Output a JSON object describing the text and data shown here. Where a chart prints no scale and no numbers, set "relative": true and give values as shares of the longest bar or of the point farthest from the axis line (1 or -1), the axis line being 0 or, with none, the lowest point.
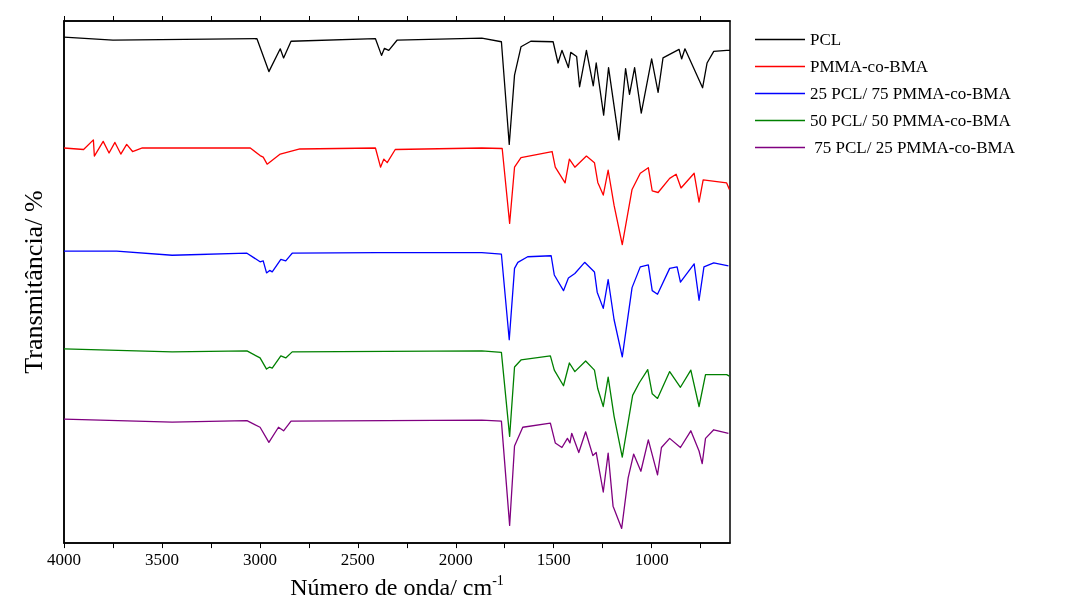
{
  "chart_data": {
    "type": "line",
    "xlabel": "Número de onda/ cm$^{-1}$",
    "ylabel": "Transmitância/ %",
    "relative": true,
    "xlim": [
      4000,
      600
    ],
    "xticks": [
      4000,
      {
        "value": 3750,
        "label": null
      },
      3500,
      {
        "value": 3250,
        "label": null
      },
      3000,
      {
        "value": 2750,
        "label": null
      },
      2500,
      {
        "value": 2250,
        "label": null
      },
      2000,
      {
        "value": 1750,
        "label": null
      },
      1500,
      {
        "value": 1250,
        "label": null
      },
      1000,
      {
        "value": 750,
        "label": null
      }
    ],
    "legend": "top right",
    "series": [
      {
        "name": "PCL",
        "color": "#000000",
        "x": [
          4000,
          3750,
          3015,
          2954,
          2896,
          2879,
          2841,
          2410,
          2379,
          2364,
          2342,
          2300,
          1867,
          1767,
          1727,
          1700,
          1667,
          1617,
          1503,
          1478,
          1458,
          1425,
          1413,
          1383,
          1368,
          1333,
          1298,
          1283,
          1245,
          1220,
          1167,
          1133,
          1113,
          1087,
          1053,
          1000,
          967,
          942,
          860,
          847,
          830,
          740,
          717,
          683,
          617,
          600
        ],
        "values": [
          1.0,
          0.994,
          0.997,
          0.932,
          0.977,
          0.959,
          0.992,
          0.997,
          0.964,
          0.978,
          0.974,
          0.994,
          0.998,
          0.991,
          0.788,
          0.925,
          0.981,
          0.992,
          0.991,
          0.949,
          0.974,
          0.94,
          0.97,
          0.962,
          0.902,
          0.974,
          0.904,
          0.949,
          0.846,
          0.94,
          0.797,
          0.938,
          0.887,
          0.94,
          0.85,
          0.957,
          0.891,
          0.959,
          0.976,
          0.957,
          0.977,
          0.9,
          0.949,
          0.972,
          0.974,
          0.974
        ]
      },
      {
        "name": "PMMA-co-BMA",
        "color": "#ff0000",
        "x": [
          4000,
          3900,
          3850,
          3845,
          3800,
          3770,
          3740,
          3710,
          3680,
          3650,
          3600,
          3049,
          2999,
          2983,
          2963,
          2896,
          2796,
          2410,
          2384,
          2367,
          2350,
          2309,
          1867,
          1763,
          1725,
          1700,
          1667,
          1508,
          1492,
          1442,
          1420,
          1392,
          1333,
          1292,
          1275,
          1247,
          1222,
          1192,
          1150,
          1100,
          1058,
          1017,
          997,
          967,
          908,
          875,
          850,
          783,
          758,
          737,
          617,
          603
        ],
        "values": [
          0.781,
          0.778,
          0.797,
          0.765,
          0.794,
          0.771,
          0.792,
          0.769,
          0.788,
          0.774,
          0.781,
          0.781,
          0.766,
          0.763,
          0.749,
          0.769,
          0.779,
          0.781,
          0.743,
          0.759,
          0.752,
          0.778,
          0.781,
          0.78,
          0.632,
          0.743,
          0.762,
          0.774,
          0.743,
          0.712,
          0.759,
          0.743,
          0.765,
          0.752,
          0.713,
          0.688,
          0.737,
          0.668,
          0.59,
          0.699,
          0.731,
          0.742,
          0.696,
          0.693,
          0.721,
          0.729,
          0.702,
          0.731,
          0.674,
          0.718,
          0.712,
          0.699
        ]
      },
      {
        "name": "25 PCL/ 75 PMMA-co-BMA",
        "color": "#0000ff",
        "x": [
          4000,
          3731,
          3448,
          3066,
          2999,
          2983,
          2966,
          2950,
          2937,
          2893,
          2868,
          2835,
          2400,
          1867,
          1767,
          1727,
          1700,
          1683,
          1633,
          1513,
          1497,
          1450,
          1425,
          1392,
          1342,
          1292,
          1278,
          1247,
          1222,
          1192,
          1150,
          1100,
          1058,
          1017,
          997,
          970,
          908,
          870,
          853,
          783,
          758,
          733,
          683,
          608
        ],
        "values": [
          0.577,
          0.577,
          0.569,
          0.573,
          0.556,
          0.558,
          0.534,
          0.539,
          0.536,
          0.561,
          0.558,
          0.573,
          0.574,
          0.574,
          0.571,
          0.402,
          0.543,
          0.555,
          0.566,
          0.568,
          0.53,
          0.499,
          0.524,
          0.533,
          0.555,
          0.536,
          0.496,
          0.464,
          0.521,
          0.442,
          0.368,
          0.505,
          0.546,
          0.55,
          0.499,
          0.492,
          0.543,
          0.546,
          0.516,
          0.552,
          0.48,
          0.546,
          0.554,
          0.548
        ]
      },
      {
        "name": "50 PCL/ 50 PMMA-co-BMA",
        "color": "#008000",
        "x": [
          4000,
          3448,
          3066,
          2999,
          2966,
          2950,
          2937,
          2893,
          2868,
          2835,
          1867,
          1767,
          1725,
          1700,
          1667,
          1517,
          1497,
          1450,
          1420,
          1392,
          1337,
          1292,
          1275,
          1247,
          1222,
          1192,
          1150,
          1097,
          1063,
          1020,
          997,
          970,
          908,
          853,
          800,
          758,
          725,
          617,
          603
        ],
        "values": [
          0.384,
          0.378,
          0.38,
          0.366,
          0.344,
          0.348,
          0.346,
          0.37,
          0.366,
          0.378,
          0.38,
          0.377,
          0.211,
          0.348,
          0.362,
          0.37,
          0.342,
          0.311,
          0.356,
          0.339,
          0.36,
          0.342,
          0.305,
          0.27,
          0.328,
          0.251,
          0.17,
          0.292,
          0.317,
          0.343,
          0.295,
          0.286,
          0.339,
          0.308,
          0.342,
          0.27,
          0.333,
          0.333,
          0.33
        ]
      },
      {
        "name": " 75 PCL/ 25 PMMA-co-BMA",
        "color": "#800080",
        "x": [
          4000,
          3448,
          3066,
          2999,
          2954,
          2905,
          2879,
          2841,
          1867,
          1767,
          1725,
          1700,
          1658,
          1517,
          1492,
          1458,
          1430,
          1417,
          1408,
          1372,
          1337,
          1300,
          1283,
          1247,
          1222,
          1197,
          1153,
          1120,
          1092,
          1055,
          1017,
          970,
          950,
          908,
          853,
          800,
          758,
          742,
          725,
          683,
          608
        ],
        "values": [
          0.245,
          0.239,
          0.242,
          0.229,
          0.199,
          0.229,
          0.222,
          0.241,
          0.243,
          0.241,
          0.035,
          0.192,
          0.229,
          0.237,
          0.198,
          0.189,
          0.207,
          0.198,
          0.217,
          0.179,
          0.22,
          0.173,
          0.179,
          0.101,
          0.178,
          0.073,
          0.029,
          0.129,
          0.176,
          0.142,
          0.204,
          0.135,
          0.189,
          0.207,
          0.189,
          0.222,
          0.182,
          0.157,
          0.207,
          0.224,
          0.217
        ]
      }
    ]
  }
}
